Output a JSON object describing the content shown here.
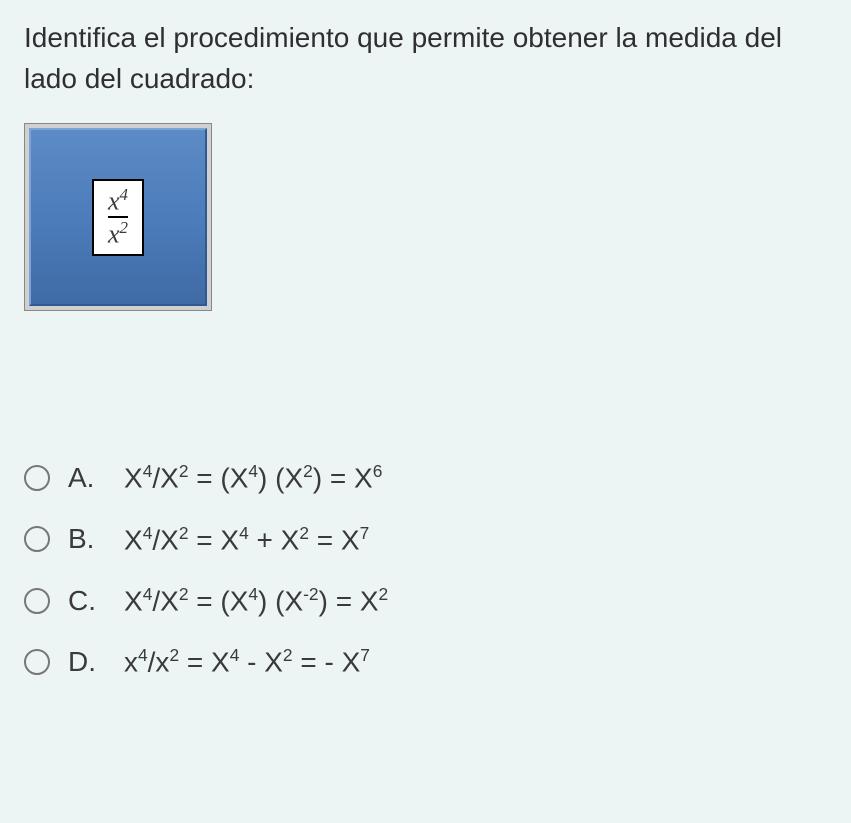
{
  "question": {
    "text": "Identifica el procedimiento que permite obtener la medida del lado del cuadrado:",
    "text_color": "#2f2f2f",
    "fontsize": 28
  },
  "figure": {
    "square_gradient_top": "#5c8bc6",
    "square_gradient_bottom": "#3f6aa5",
    "outer_border": "#888888",
    "outer_bg": "#d0d0d0",
    "inner_box_bg": "#ffffff",
    "inner_box_border": "#000000",
    "fraction": {
      "numerator_base": "x",
      "numerator_exp": "4",
      "denominator_base": "x",
      "denominator_exp": "2"
    }
  },
  "options": [
    {
      "letter": "A.",
      "formula_html": "X<sup>4</sup>/X<sup>2</sup> = (X<sup>4</sup>) (X<sup>2</sup>) = X<sup>6</sup>"
    },
    {
      "letter": "B.",
      "formula_html": "X<sup>4</sup>/X<sup>2</sup> = X<sup>4</sup> + X<sup>2</sup> = X<sup>7</sup>"
    },
    {
      "letter": "C.",
      "formula_html": "X<sup>4</sup>/X<sup>2</sup> = (X<sup>4</sup>) (X<sup>-2</sup>) = X<sup>2</sup>"
    },
    {
      "letter": "D.",
      "formula_html": "x<sup>4</sup>/x<sup>2</sup> = X<sup>4</sup> - X<sup>2</sup> = - X<sup>7</sup>"
    }
  ],
  "styling": {
    "page_bg": "#edf4f4",
    "radio_border": "#777777",
    "option_fontsize": 28,
    "option_gap": 28
  }
}
